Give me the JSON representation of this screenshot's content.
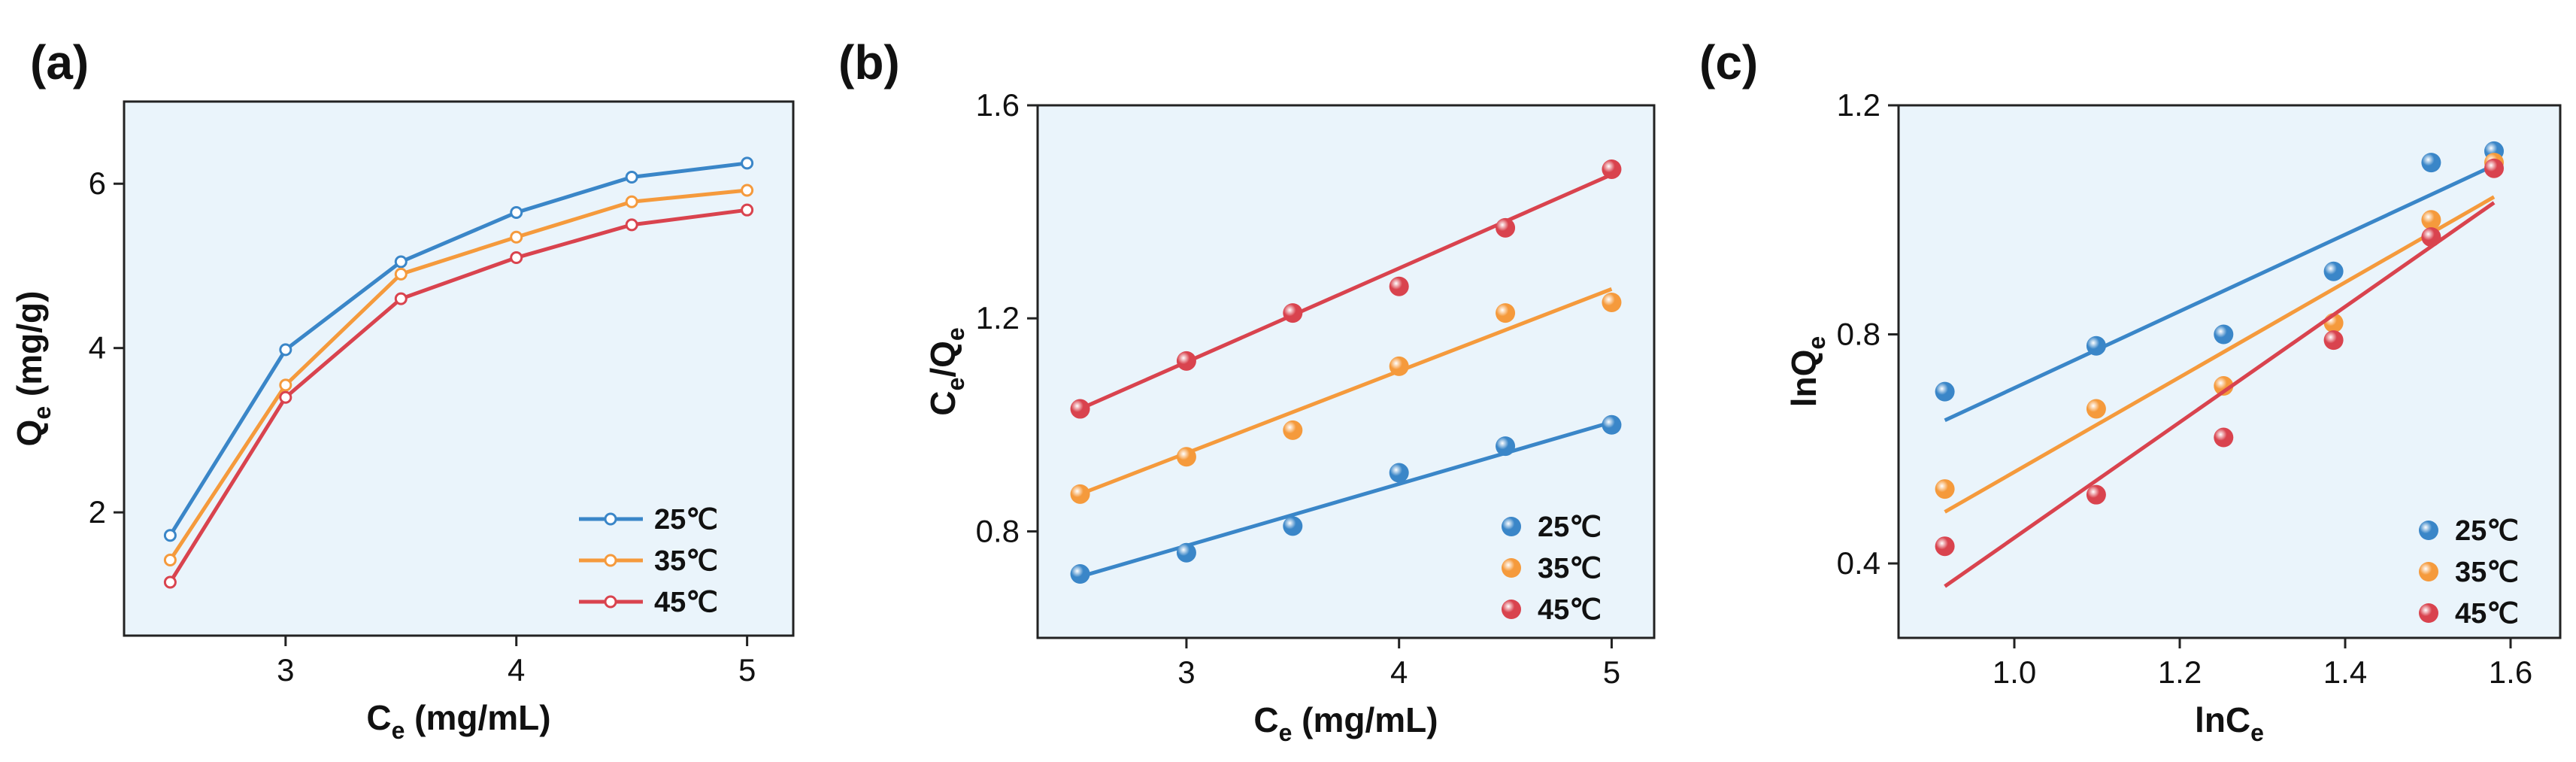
{
  "colors": {
    "plot_bg": "#eaf4fb",
    "frame": "#222222",
    "t25": "#3a86c8",
    "t35": "#f59a3c",
    "t45": "#d9434e"
  },
  "chart_data": [
    {
      "type": "line",
      "panel_label": "(a)",
      "xlabel_main": "C",
      "xlabel_sub": "e",
      "xlabel_rest": " (mg/mL)",
      "ylabel_main": "Q",
      "ylabel_sub": "e",
      "ylabel_rest": " (mg/g)",
      "xlim": [
        2.3,
        5.2
      ],
      "ylim": [
        0.5,
        7.0
      ],
      "xticks": [
        3,
        4,
        5
      ],
      "yticks": [
        2,
        4,
        6
      ],
      "xtick_labels": [
        "3",
        "4",
        "5"
      ],
      "ytick_labels": [
        "2",
        "4",
        "6"
      ],
      "x": [
        2.5,
        3.0,
        3.5,
        4.0,
        4.5,
        5.0
      ],
      "legend_position": "bottom-right",
      "series": [
        {
          "name": "25℃",
          "color_key": "t25",
          "values": [
            1.72,
            3.98,
            5.05,
            5.65,
            6.08,
            6.25
          ]
        },
        {
          "name": "35℃",
          "color_key": "t35",
          "values": [
            1.42,
            3.55,
            4.9,
            5.35,
            5.78,
            5.92
          ]
        },
        {
          "name": "45℃",
          "color_key": "t45",
          "values": [
            1.15,
            3.4,
            4.6,
            5.1,
            5.5,
            5.68
          ]
        }
      ]
    },
    {
      "type": "scatter",
      "panel_label": "(b)",
      "xlabel_main": "C",
      "xlabel_sub": "e",
      "xlabel_rest": " (mg/mL)",
      "ylabel_main": "C",
      "ylabel_sub": "e",
      "ylabel_mid": "/Q",
      "ylabel_sub2": "e",
      "xlim": [
        2.3,
        5.2
      ],
      "ylim": [
        0.6,
        1.6
      ],
      "xticks": [
        3,
        4,
        5
      ],
      "yticks": [
        0.8,
        1.2,
        1.6
      ],
      "xtick_labels": [
        "3",
        "4",
        "5"
      ],
      "ytick_labels": [
        "0.8",
        "1.2",
        "1.6"
      ],
      "x": [
        2.5,
        3.0,
        3.5,
        4.0,
        4.5,
        5.0
      ],
      "legend_position": "bottom-right",
      "series": [
        {
          "name": "25℃",
          "color_key": "t25",
          "values": [
            0.72,
            0.76,
            0.81,
            0.91,
            0.96,
            1.0
          ],
          "fit": [
            [
              2.5,
              0.715
            ],
            [
              5.0,
              1.005
            ]
          ]
        },
        {
          "name": "35℃",
          "color_key": "t35",
          "values": [
            0.87,
            0.94,
            0.99,
            1.11,
            1.21,
            1.23
          ],
          "fit": [
            [
              2.5,
              0.87
            ],
            [
              5.0,
              1.255
            ]
          ]
        },
        {
          "name": "45℃",
          "color_key": "t45",
          "values": [
            1.03,
            1.12,
            1.21,
            1.26,
            1.37,
            1.48
          ],
          "fit": [
            [
              2.5,
              1.03
            ],
            [
              5.0,
              1.47
            ]
          ]
        }
      ]
    },
    {
      "type": "scatter",
      "panel_label": "(c)",
      "xlabel_main": "lnC",
      "xlabel_sub": "e",
      "ylabel_main": "lnQ",
      "ylabel_sub": "e",
      "xlim": [
        0.86,
        1.66
      ],
      "ylim": [
        0.27,
        1.2
      ],
      "xticks": [
        1.0,
        1.2,
        1.4,
        1.6
      ],
      "yticks": [
        0.4,
        0.8,
        1.2
      ],
      "xtick_labels": [
        "1.0",
        "1.2",
        "1.4",
        "1.6"
      ],
      "ytick_labels": [
        "0.4",
        "0.8",
        "1.2"
      ],
      "x": [
        0.916,
        1.099,
        1.253,
        1.386,
        1.504,
        1.58
      ],
      "legend_position": "bottom-right",
      "series": [
        {
          "name": "25℃",
          "color_key": "t25",
          "values": [
            0.7,
            0.78,
            0.8,
            0.91,
            1.1,
            1.12
          ],
          "fit": [
            [
              0.916,
              0.65
            ],
            [
              1.58,
              1.095
            ]
          ]
        },
        {
          "name": "35℃",
          "color_key": "t35",
          "values": [
            0.53,
            0.67,
            0.71,
            0.82,
            1.0,
            1.1
          ],
          "fit": [
            [
              0.916,
              0.49
            ],
            [
              1.58,
              1.04
            ]
          ]
        },
        {
          "name": "45℃",
          "color_key": "t45",
          "values": [
            0.43,
            0.52,
            0.62,
            0.79,
            0.97,
            1.09
          ],
          "fit": [
            [
              0.916,
              0.36
            ],
            [
              1.58,
              1.03
            ]
          ]
        }
      ]
    }
  ]
}
